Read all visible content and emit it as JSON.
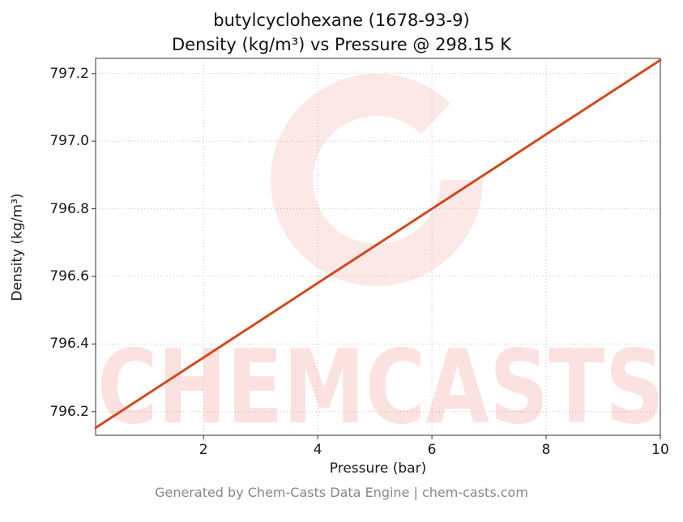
{
  "title": {
    "line1": "butylcyclohexane (1678-93-9)",
    "line2": "Density (kg/m³) vs Pressure @ 298.15 K"
  },
  "footer": "Generated by Chem-Casts Data Engine | chem-casts.com",
  "watermark": {
    "text": "CHEMCASTS",
    "color": "#e74c3c"
  },
  "chart_data": {
    "type": "line",
    "title": "butylcyclohexane (1678-93-9) — Density (kg/m³) vs Pressure @ 298.15 K",
    "xlabel": "Pressure (bar)",
    "ylabel": "Density (kg/m³)",
    "xlim": [
      0.11,
      10
    ],
    "ylim": [
      796.13,
      797.245
    ],
    "x_ticks": [
      2,
      4,
      6,
      8,
      10
    ],
    "y_tick_labels": [
      "796.2",
      "796.4",
      "796.6",
      "796.8",
      "797.0",
      "797.2"
    ],
    "grid": true,
    "legend": "none",
    "line_color": "#d2491e",
    "series": [
      {
        "name": "density_vs_pressure",
        "x": [
          0.11,
          1,
          2,
          3,
          4,
          5,
          6,
          7,
          8,
          9,
          10
        ],
        "y": [
          796.152,
          796.25,
          796.36,
          796.47,
          796.58,
          796.69,
          796.8,
          796.91,
          797.02,
          797.13,
          797.24
        ]
      }
    ]
  }
}
